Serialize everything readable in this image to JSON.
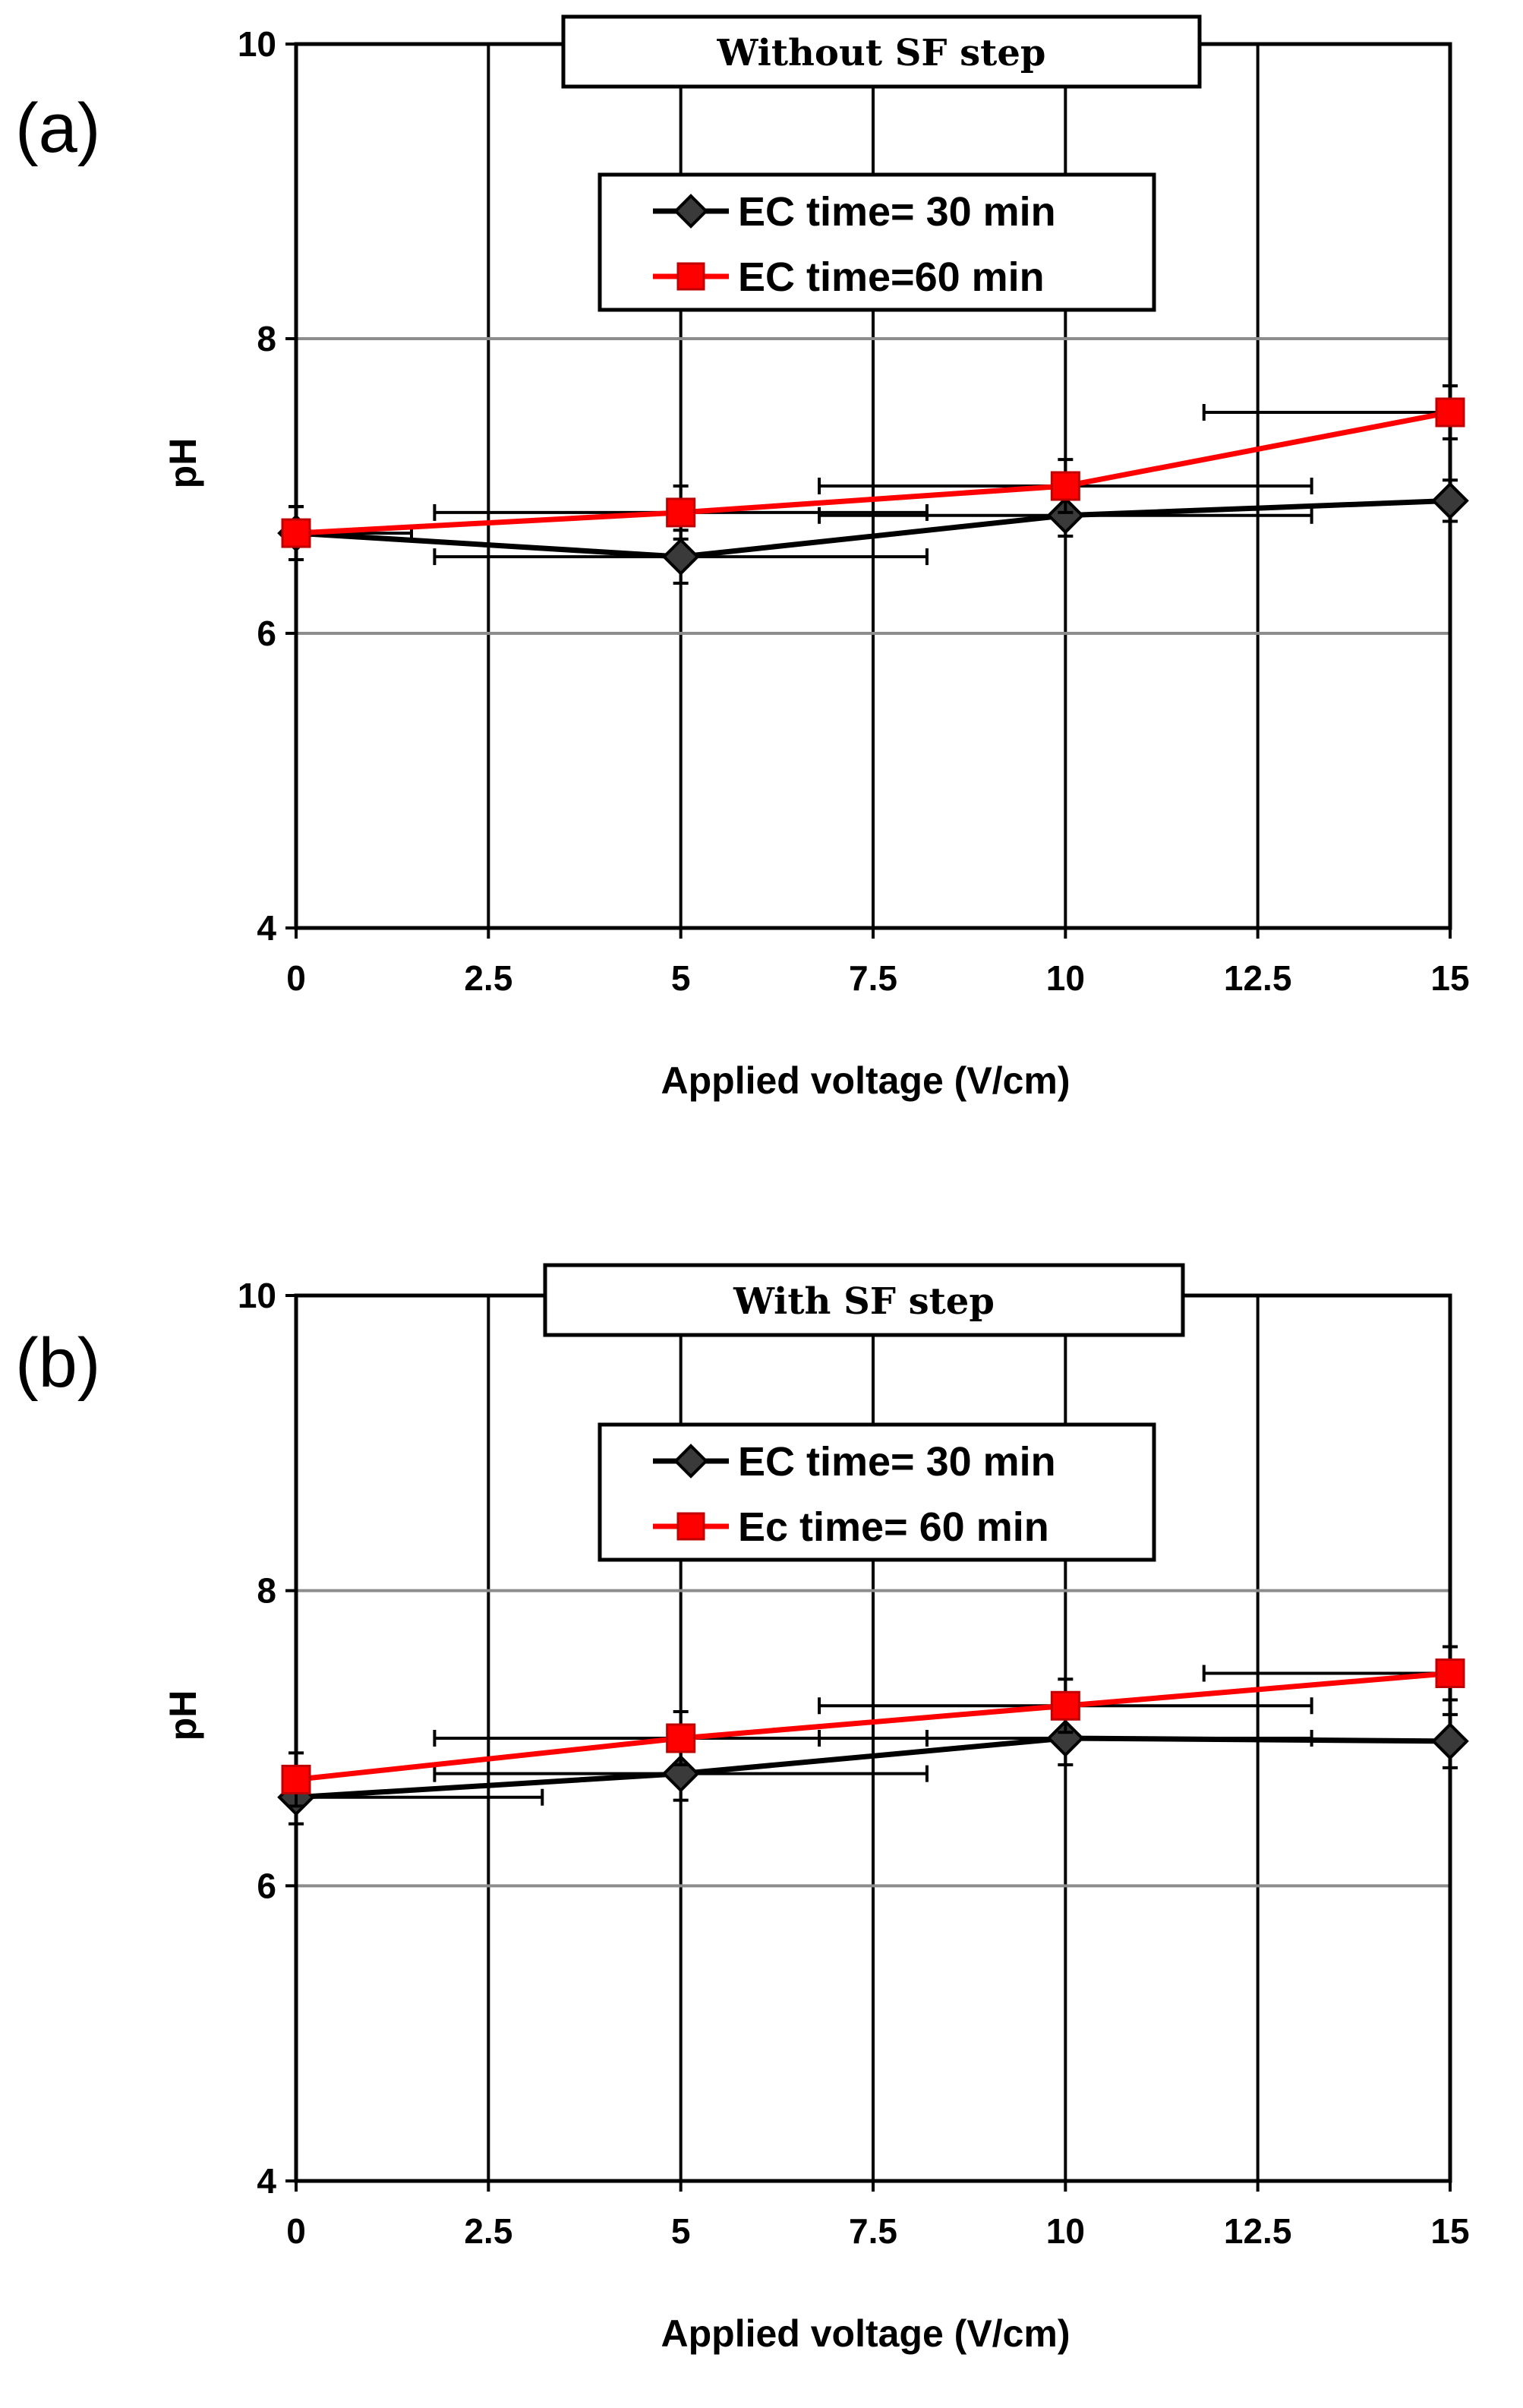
{
  "chart_data": [
    {
      "type": "line",
      "panel_label": "(a)",
      "title": "Without SF step",
      "xlabel": "Applied voltage (V/cm)",
      "ylabel": "pH",
      "xlim": [
        0,
        15
      ],
      "ylim": [
        4,
        10
      ],
      "x_ticks": [
        "0",
        "2.5",
        "5",
        "7.5",
        "10",
        "12.5",
        "15"
      ],
      "y_ticks": [
        "4",
        "6",
        "8",
        "10"
      ],
      "grid": true,
      "legend": "upper-center",
      "x": [
        0,
        5,
        10,
        15
      ],
      "series": [
        {
          "name": "EC time= 30 min",
          "color": "#000000",
          "marker": "diamond",
          "values": [
            6.68,
            6.52,
            6.8,
            6.9
          ],
          "y_err": [
            0.18,
            0.18,
            0.14,
            0.14
          ],
          "x_err": [
            1.5,
            3.2,
            3.2,
            0
          ]
        },
        {
          "name": "EC time=60 min",
          "color": "#ff0000",
          "marker": "square",
          "values": [
            6.68,
            6.82,
            7.0,
            7.5
          ],
          "y_err": [
            0.18,
            0.18,
            0.18,
            0.18
          ],
          "x_err": [
            0,
            3.2,
            3.2,
            3.2
          ]
        }
      ]
    },
    {
      "type": "line",
      "panel_label": "(b)",
      "title": "With SF step",
      "xlabel": "Applied voltage (V/cm)",
      "ylabel": "pH",
      "xlim": [
        0,
        15
      ],
      "ylim": [
        4,
        10
      ],
      "x_ticks": [
        "0",
        "2.5",
        "5",
        "7.5",
        "10",
        "12.5",
        "15"
      ],
      "y_ticks": [
        "4",
        "6",
        "8",
        "10"
      ],
      "grid": true,
      "legend": "upper-center",
      "x": [
        0,
        5,
        10,
        15
      ],
      "series": [
        {
          "name": "EC time= 30 min",
          "color": "#000000",
          "marker": "diamond",
          "values": [
            6.6,
            6.76,
            7.0,
            6.98
          ],
          "y_err": [
            0.18,
            0.18,
            0.18,
            0.18
          ],
          "x_err": [
            3.2,
            3.2,
            3.2,
            0
          ]
        },
        {
          "name": "Ec time= 60 min",
          "color": "#ff0000",
          "marker": "square",
          "values": [
            6.72,
            7.0,
            7.22,
            7.44
          ],
          "y_err": [
            0.18,
            0.18,
            0.18,
            0.18
          ],
          "x_err": [
            0,
            3.2,
            3.2,
            3.2
          ]
        }
      ]
    }
  ]
}
